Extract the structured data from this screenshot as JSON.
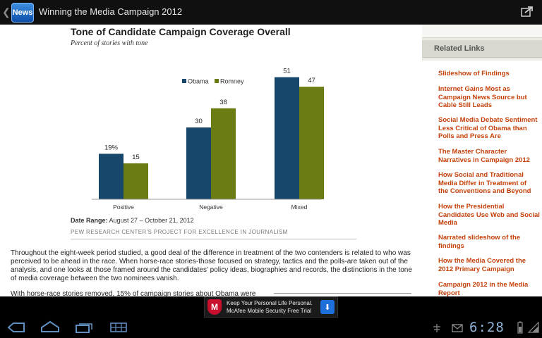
{
  "app": {
    "title": "Winning the Media Campaign 2012",
    "icon_label": "News"
  },
  "article": {
    "chart_title": "Tone of Candidate Campaign Coverage Overall",
    "chart_subtitle": "Percent of stories with tone",
    "date_range_label": "Date Range:",
    "date_range_value": "August 27 – October 21, 2012",
    "source": "PEW RESEARCH CENTER'S PROJECT FOR EXCELLENCE IN JOURNALISM",
    "paragraph1": "Throughout the eight-week period studied, a good deal of the difference in treatment of the two contenders is related to who was perceived to be ahead in the race. When horse-race stories-those focused on strategy, tactics and the polls-are taken out of the analysis, and one looks at those framed around the candidates' policy ideas, biographies and records, the distinctions in the tone of media coverage between the two nominees vanish.",
    "paragraph2": "With horse-race stories removed, 15% of campaign stories about Obama were"
  },
  "chart_data": {
    "type": "bar",
    "title": "Tone of Candidate Campaign Coverage Overall",
    "subtitle": "Percent of stories with tone",
    "categories": [
      "Positive",
      "Negative",
      "Mixed"
    ],
    "series": [
      {
        "name": "Obama",
        "values": [
          19,
          30,
          51
        ],
        "labels": [
          "19%",
          "30",
          "51"
        ],
        "color": "#17476b"
      },
      {
        "name": "Romney",
        "values": [
          15,
          38,
          47
        ],
        "labels": [
          "15",
          "38",
          "47"
        ],
        "color": "#6b7d12"
      }
    ],
    "ylim": [
      0,
      60
    ],
    "legend": "top-center",
    "grid": false
  },
  "sidebar": {
    "header": "Related Links",
    "links": [
      "Slideshow of Findings",
      "Internet Gains Most as\nCampaign News Source but\nCable Still Leads",
      "Social Media Debate Sentiment\nLess Critical of Obama than\nPolls and Press Are",
      "The Master Character\nNarratives in Campaign 2012",
      "How Social and Traditional\nMedia Differ in Treatment of\nthe Conventions and Beyond",
      "How the Presidential\nCandidates Use Web and Social\nMedia",
      "Narrated slideshow of the\nfindings",
      "How the Media Covered the\n2012 Primary Campaign",
      "Campaign 2012 in the Media\nReport"
    ]
  },
  "ad": {
    "line1": "Keep Your Personal Life Personal.",
    "line2": "McAfee Mobile Security Free Trial",
    "logo_letter": "M"
  },
  "system": {
    "clock": "6:28"
  },
  "colors": {
    "obama": "#17476b",
    "romney": "#6b7d12",
    "link": "#c5410a"
  }
}
